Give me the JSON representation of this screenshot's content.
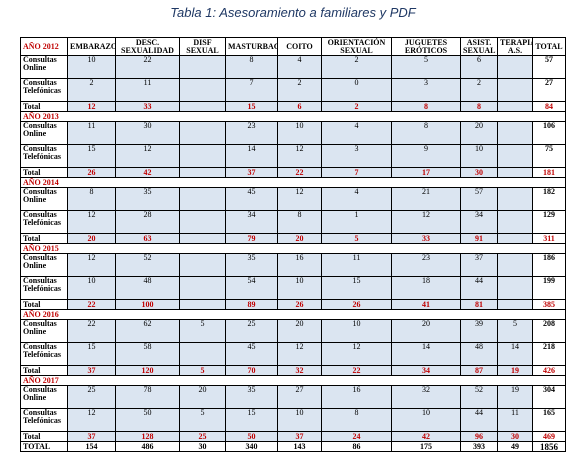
{
  "caption": "Tabla 1: Asesoramiento a familiares y PDF",
  "header": {
    "year_label": "AÑO 2012",
    "columns": [
      "EMBARAZO",
      "DESC. SEXUALIDAD",
      "DISF SEXUAL",
      "MASTURBAC",
      "COITO",
      "ORIENTACIÓN SEXUAL",
      "JUGUETES ERÓTICOS",
      "ASIST. SEXUAL",
      "TERAPIA A.S.",
      "TOTAL"
    ]
  },
  "years": [
    {
      "rows": [
        {
          "label": "Consultas Online",
          "values": [
            "10",
            "22",
            "",
            "8",
            "4",
            "2",
            "5",
            "6",
            ""
          ],
          "total": "57"
        },
        {
          "label": "Consultas Telefónicas",
          "values": [
            "2",
            "11",
            "",
            "7",
            "2",
            "0",
            "3",
            "2",
            ""
          ],
          "total": "27"
        }
      ],
      "total": {
        "label": "Total",
        "values": [
          "12",
          "33",
          "",
          "15",
          "6",
          "2",
          "8",
          "8",
          ""
        ],
        "total": "84"
      }
    },
    {
      "label": "AÑO 2013",
      "rows": [
        {
          "label": "Consultas Online",
          "values": [
            "11",
            "30",
            "",
            "23",
            "10",
            "4",
            "8",
            "20",
            ""
          ],
          "total": "106"
        },
        {
          "label": "Consultas Telefónicas",
          "values": [
            "15",
            "12",
            "",
            "14",
            "12",
            "3",
            "9",
            "10",
            ""
          ],
          "total": "75"
        }
      ],
      "total": {
        "label": "Total",
        "values": [
          "26",
          "42",
          "",
          "37",
          "22",
          "7",
          "17",
          "30",
          ""
        ],
        "total": "181"
      }
    },
    {
      "label": "AÑO 2014",
      "rows": [
        {
          "label": "Consultas Online",
          "values": [
            "8",
            "35",
            "",
            "45",
            "12",
            "4",
            "21",
            "57",
            ""
          ],
          "total": "182"
        },
        {
          "label": "Consultas Telefónicas",
          "values": [
            "12",
            "28",
            "",
            "34",
            "8",
            "1",
            "12",
            "34",
            ""
          ],
          "total": "129"
        }
      ],
      "total": {
        "label": "Total",
        "values": [
          "20",
          "63",
          "",
          "79",
          "20",
          "5",
          "33",
          "91",
          ""
        ],
        "total": "311"
      }
    },
    {
      "label": "AÑO 2015",
      "rows": [
        {
          "label": "Consultas Online",
          "values": [
            "12",
            "52",
            "",
            "35",
            "16",
            "11",
            "23",
            "37",
            ""
          ],
          "total": "186"
        },
        {
          "label": "Consultas Telefónicas",
          "values": [
            "10",
            "48",
            "",
            "54",
            "10",
            "15",
            "18",
            "44",
            ""
          ],
          "total": "199"
        }
      ],
      "total": {
        "label": "Total",
        "values": [
          "22",
          "100",
          "",
          "89",
          "26",
          "26",
          "41",
          "81",
          ""
        ],
        "total": "385"
      }
    },
    {
      "label": "AÑO 2016",
      "rows": [
        {
          "label": "Consultas Online",
          "values": [
            "22",
            "62",
            "5",
            "25",
            "20",
            "10",
            "20",
            "39",
            "5"
          ],
          "total": "208"
        },
        {
          "label": "Consultas Telefónicas",
          "values": [
            "15",
            "58",
            "",
            "45",
            "12",
            "12",
            "14",
            "48",
            "14"
          ],
          "total": "218"
        }
      ],
      "total": {
        "label": "Total",
        "values": [
          "37",
          "120",
          "5",
          "70",
          "32",
          "22",
          "34",
          "87",
          "19"
        ],
        "total": "426"
      }
    },
    {
      "label": "AÑO 2017",
      "rows": [
        {
          "label": "Consultas Online",
          "values": [
            "25",
            "78",
            "20",
            "35",
            "27",
            "16",
            "32",
            "52",
            "19"
          ],
          "total": "304"
        },
        {
          "label": "Consultas Telefónicas",
          "values": [
            "12",
            "50",
            "5",
            "15",
            "10",
            "8",
            "10",
            "44",
            "11"
          ],
          "total": "165"
        }
      ],
      "total": {
        "label": "Total",
        "values": [
          "37",
          "128",
          "25",
          "50",
          "37",
          "24",
          "42",
          "96",
          "30"
        ],
        "total": "469"
      }
    }
  ],
  "grand_total": {
    "label": "TOTAL",
    "values": [
      "154",
      "486",
      "30",
      "340",
      "143",
      "86",
      "175",
      "393",
      "49"
    ],
    "total": "1856"
  }
}
